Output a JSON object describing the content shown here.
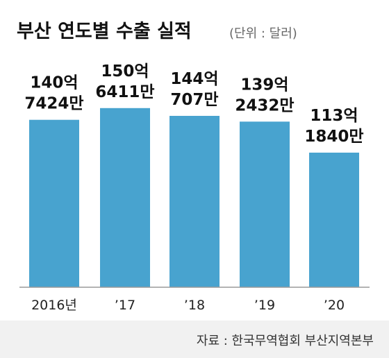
{
  "chart_data": {
    "type": "bar",
    "title": "부산 연도별 수출 실적",
    "unit_note": "(단위 : 달러)",
    "categories": [
      "2016년",
      "’17",
      "’18",
      "’19",
      "’20"
    ],
    "values": [
      14074240000,
      15064110000,
      14407070000,
      13924320000,
      11318400000
    ],
    "value_labels": [
      [
        "140억",
        "7424만"
      ],
      [
        "150억",
        "6411만"
      ],
      [
        "144억",
        "707만"
      ],
      [
        "139억",
        "2432만"
      ],
      [
        "113억",
        "1840만"
      ]
    ],
    "ylim": [
      0,
      17500000000
    ],
    "grid": false,
    "bar_color": "#48a3cf",
    "source": "자료 : 한국무역협회 부산지역본부"
  }
}
